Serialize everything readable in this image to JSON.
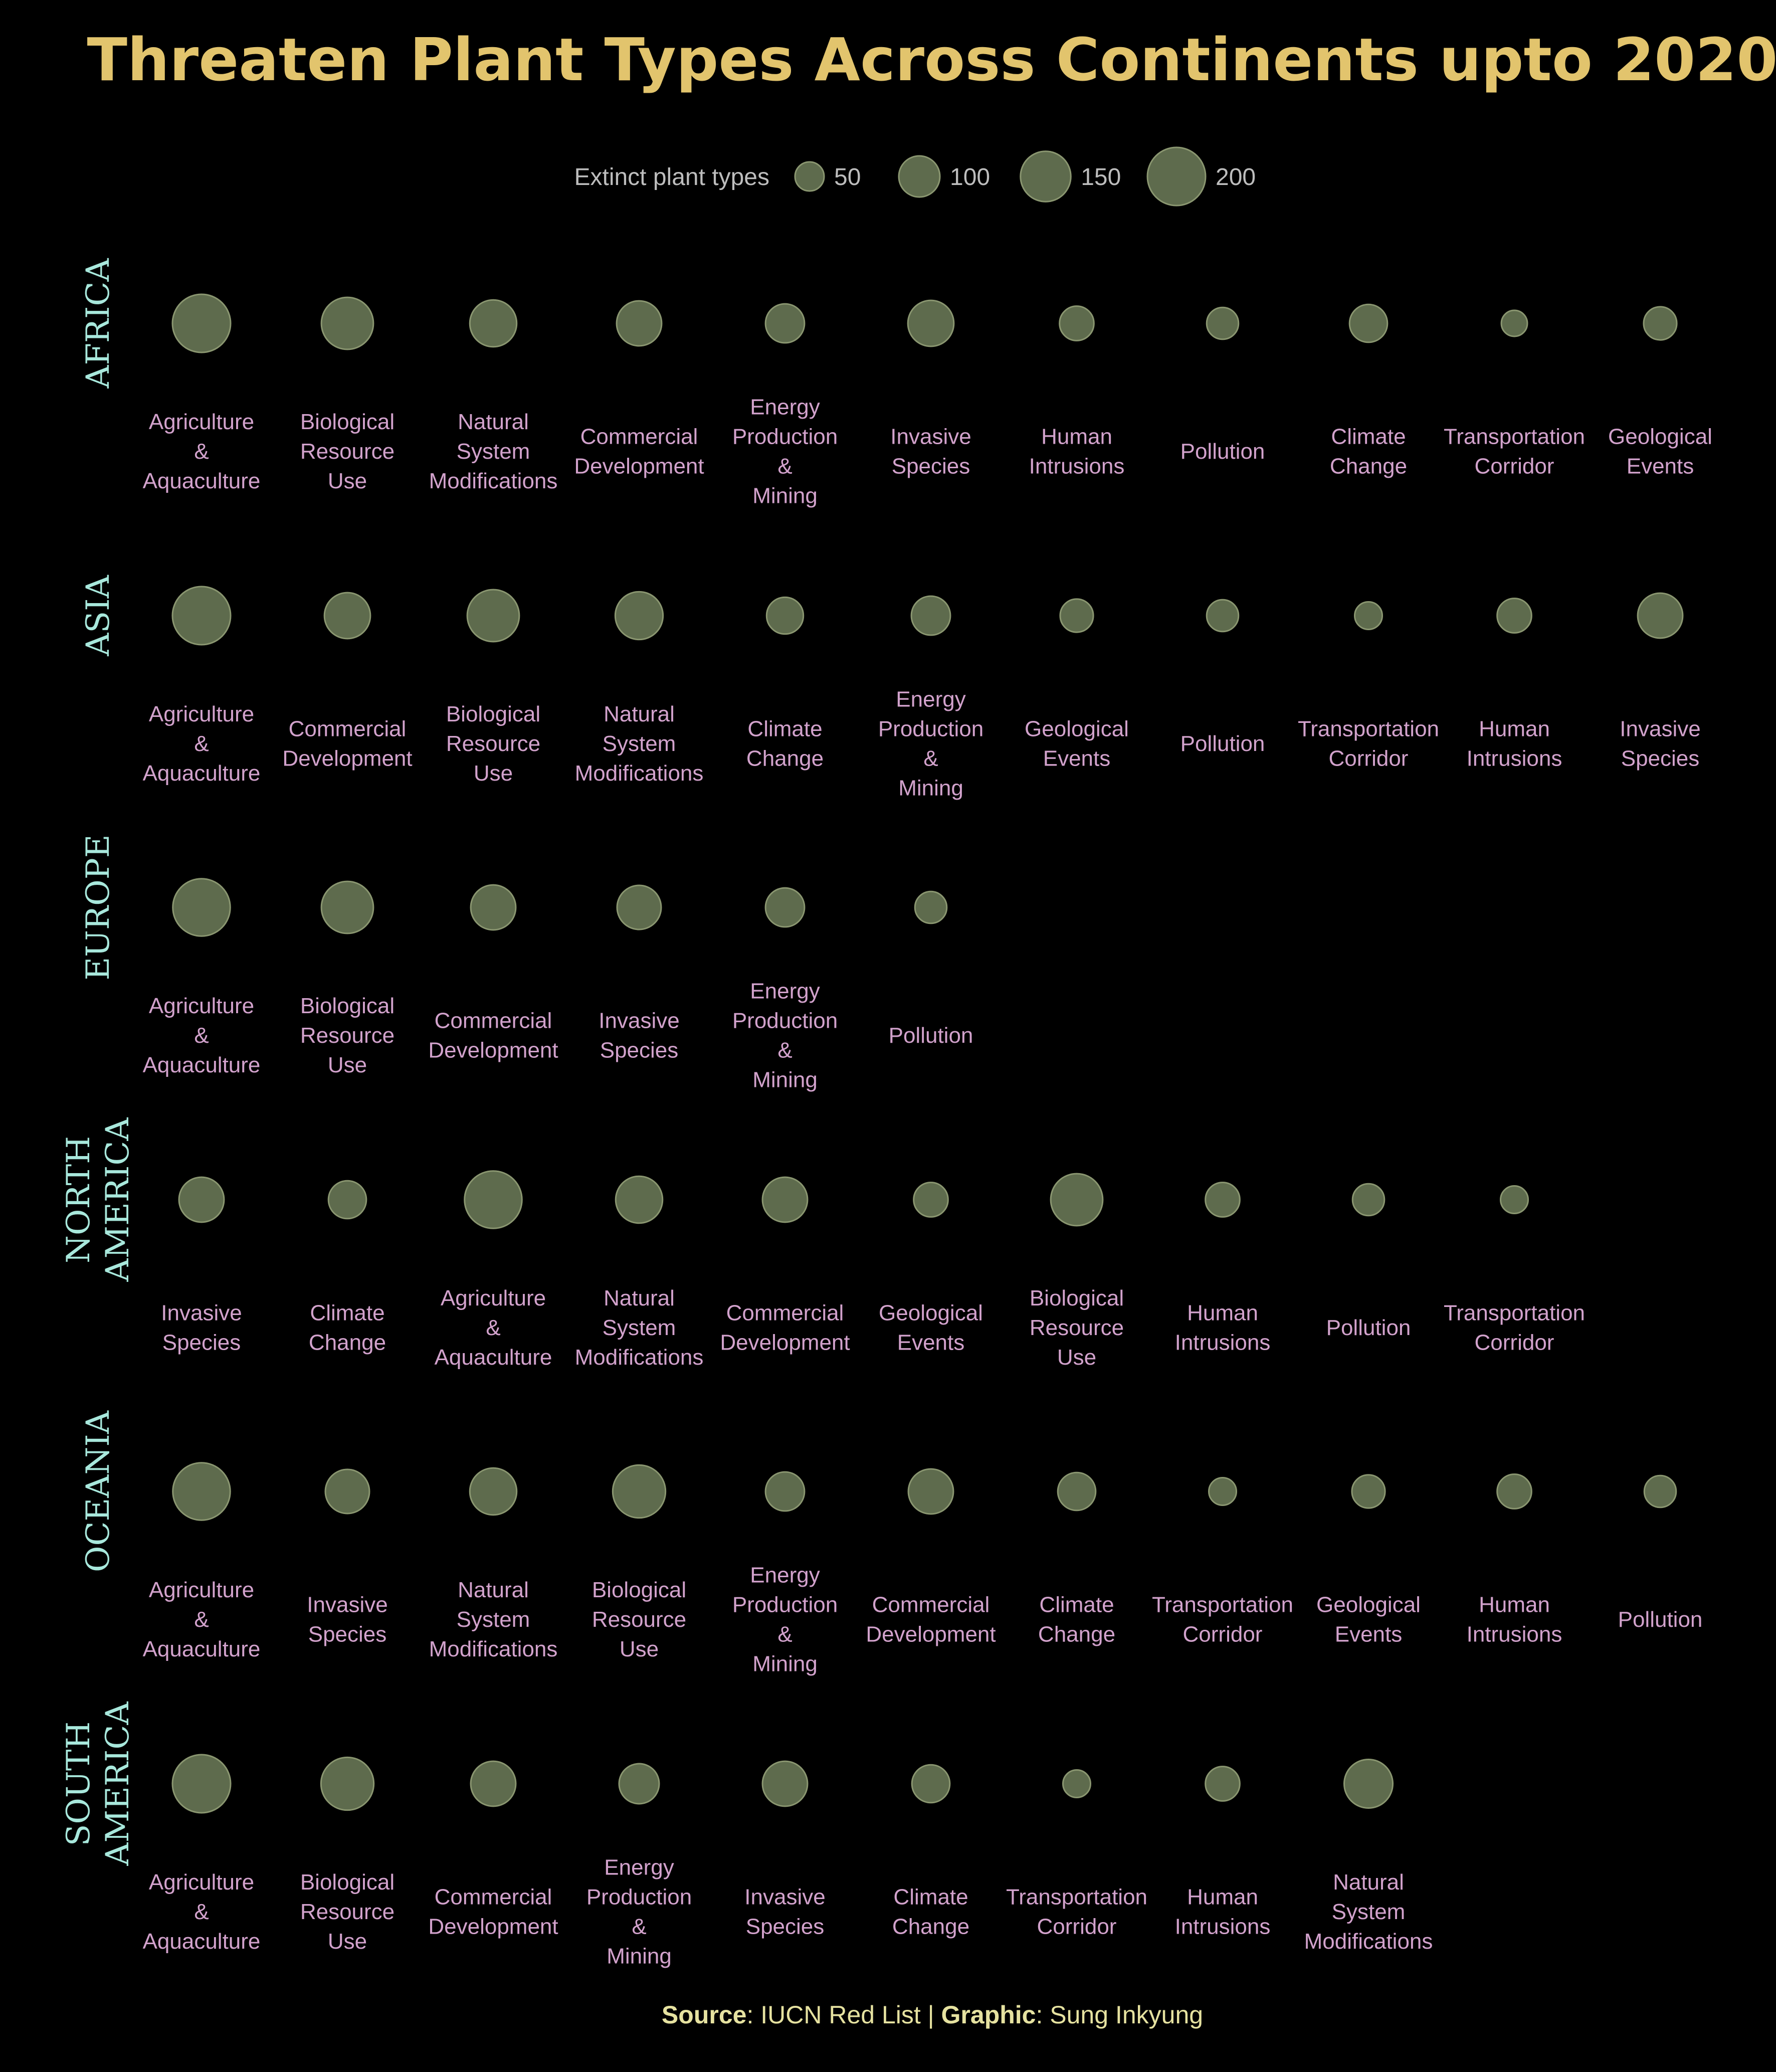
{
  "chart_data": {
    "type": "scatter",
    "title": "Threaten Plant Types Across Continents upto 2020",
    "legend": {
      "label": "Extinct plant types",
      "sizes": [
        50,
        100,
        150,
        200
      ],
      "placement": "top-center"
    },
    "size_encoding": "area",
    "colors": {
      "background": "#000000",
      "title": "#E2C46D",
      "bubble_fill": "#5E6B4D",
      "bubble_stroke": "#8A9670",
      "category_label": "#D2A2CC",
      "continent_label": "#A8E8DC",
      "legend_text": "#BDBDBD",
      "source_text": "#E6E2A0"
    },
    "rows": [
      {
        "continent": "AFRICA",
        "items": [
          {
            "threat": "Agriculture & Aquaculture",
            "value": 200
          },
          {
            "threat": "Biological Resource Use",
            "value": 160
          },
          {
            "threat": "Natural System Modifications",
            "value": 130
          },
          {
            "threat": "Commercial Development",
            "value": 120
          },
          {
            "threat": "Energy Production & Mining",
            "value": 90
          },
          {
            "threat": "Invasive Species",
            "value": 125
          },
          {
            "threat": "Human Intrusions",
            "value": 70
          },
          {
            "threat": "Pollution",
            "value": 60
          },
          {
            "threat": "Climate Change",
            "value": 85
          },
          {
            "threat": "Transportation Corridor",
            "value": 40
          },
          {
            "threat": "Geological Events",
            "value": 65
          }
        ]
      },
      {
        "continent": "ASIA",
        "items": [
          {
            "threat": "Agriculture & Aquaculture",
            "value": 200
          },
          {
            "threat": "Commercial Development",
            "value": 125
          },
          {
            "threat": "Biological Resource Use",
            "value": 160
          },
          {
            "threat": "Natural System Modifications",
            "value": 135
          },
          {
            "threat": "Climate Change",
            "value": 80
          },
          {
            "threat": "Energy Production & Mining",
            "value": 90
          },
          {
            "threat": "Geological Events",
            "value": 65
          },
          {
            "threat": "Pollution",
            "value": 60
          },
          {
            "threat": "Transportation Corridor",
            "value": 45
          },
          {
            "threat": "Human Intrusions",
            "value": 70
          },
          {
            "threat": "Invasive Species",
            "value": 120
          }
        ]
      },
      {
        "continent": "EUROPE",
        "items": [
          {
            "threat": "Agriculture & Aquaculture",
            "value": 195
          },
          {
            "threat": "Biological Resource Use",
            "value": 160
          },
          {
            "threat": "Commercial Development",
            "value": 120
          },
          {
            "threat": "Invasive Species",
            "value": 115
          },
          {
            "threat": "Energy Production & Mining",
            "value": 90
          },
          {
            "threat": "Pollution",
            "value": 60
          }
        ]
      },
      {
        "continent": "NORTH AMERICA",
        "items": [
          {
            "threat": "Invasive Species",
            "value": 120
          },
          {
            "threat": "Climate Change",
            "value": 85
          },
          {
            "threat": "Agriculture & Aquaculture",
            "value": 195
          },
          {
            "threat": "Natural System Modifications",
            "value": 130
          },
          {
            "threat": "Commercial Development",
            "value": 120
          },
          {
            "threat": "Geological Events",
            "value": 70
          },
          {
            "threat": "Biological Resource Use",
            "value": 160
          },
          {
            "threat": "Human Intrusions",
            "value": 70
          },
          {
            "threat": "Pollution",
            "value": 60
          },
          {
            "threat": "Transportation Corridor",
            "value": 45
          }
        ]
      },
      {
        "continent": "OCEANIA",
        "items": [
          {
            "threat": "Agriculture & Aquaculture",
            "value": 195
          },
          {
            "threat": "Invasive Species",
            "value": 115
          },
          {
            "threat": "Natural System Modifications",
            "value": 130
          },
          {
            "threat": "Biological Resource Use",
            "value": 165
          },
          {
            "threat": "Energy Production & Mining",
            "value": 90
          },
          {
            "threat": "Commercial Development",
            "value": 120
          },
          {
            "threat": "Climate Change",
            "value": 85
          },
          {
            "threat": "Transportation Corridor",
            "value": 45
          },
          {
            "threat": "Geological Events",
            "value": 65
          },
          {
            "threat": "Human Intrusions",
            "value": 70
          },
          {
            "threat": "Pollution",
            "value": 60
          }
        ]
      },
      {
        "continent": "SOUTH AMERICA",
        "items": [
          {
            "threat": "Agriculture & Aquaculture",
            "value": 200
          },
          {
            "threat": "Biological Resource Use",
            "value": 165
          },
          {
            "threat": "Commercial Development",
            "value": 120
          },
          {
            "threat": "Energy Production & Mining",
            "value": 95
          },
          {
            "threat": "Invasive Species",
            "value": 120
          },
          {
            "threat": "Climate Change",
            "value": 85
          },
          {
            "threat": "Transportation Corridor",
            "value": 45
          },
          {
            "threat": "Human Intrusions",
            "value": 70
          },
          {
            "threat": "Natural System Modifications",
            "value": 140
          }
        ]
      }
    ],
    "source": {
      "source_label": "Source",
      "source_value": ": IUCN Red List | ",
      "graphic_label": "Graphic",
      "graphic_value": ": Sung Inkyung"
    }
  }
}
